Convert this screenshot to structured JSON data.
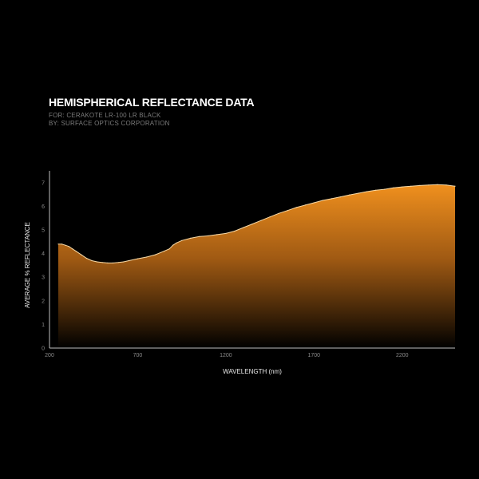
{
  "chart_data": {
    "type": "area",
    "title": "HEMISPHERICAL REFLECTANCE DATA",
    "subtitle_lines": [
      "FOR: CERAKOTE LR-100 LR BLACK",
      "BY: SURFACE OPTICS CORPORATION"
    ],
    "xlabel": "WAVELENGTH (nm)",
    "ylabel": "AVERAGE % REFLECTANCE",
    "xlim": [
      200,
      2500
    ],
    "ylim": [
      0,
      7.5
    ],
    "x_ticks": [
      200,
      700,
      1200,
      1700,
      2200
    ],
    "y_ticks": [
      0,
      1,
      2,
      3,
      4,
      5,
      6,
      7
    ],
    "grid": false,
    "series": [
      {
        "color": "#f0901e",
        "x": [
          250,
          270,
          290,
          310,
          330,
          350,
          380,
          410,
          440,
          470,
          500,
          530,
          560,
          590,
          620,
          650,
          700,
          750,
          800,
          850,
          880,
          900,
          920,
          950,
          1000,
          1050,
          1100,
          1150,
          1200,
          1250,
          1300,
          1350,
          1400,
          1450,
          1500,
          1550,
          1600,
          1650,
          1700,
          1750,
          1800,
          1850,
          1900,
          1950,
          2000,
          2050,
          2100,
          2150,
          2200,
          2250,
          2300,
          2350,
          2400,
          2450,
          2500
        ],
        "y": [
          4.4,
          4.4,
          4.35,
          4.3,
          4.2,
          4.1,
          3.95,
          3.8,
          3.7,
          3.65,
          3.62,
          3.6,
          3.6,
          3.62,
          3.65,
          3.7,
          3.78,
          3.85,
          3.95,
          4.1,
          4.2,
          4.35,
          4.45,
          4.55,
          4.65,
          4.72,
          4.75,
          4.8,
          4.85,
          4.95,
          5.1,
          5.25,
          5.4,
          5.55,
          5.7,
          5.82,
          5.95,
          6.05,
          6.15,
          6.25,
          6.32,
          6.4,
          6.48,
          6.55,
          6.62,
          6.68,
          6.72,
          6.78,
          6.82,
          6.85,
          6.88,
          6.9,
          6.92,
          6.9,
          6.85
        ]
      }
    ]
  },
  "colors": {
    "background": "#000000",
    "fill_top": "#f0901e",
    "fill_bottom": "#000000",
    "line": "#f7d9a6"
  }
}
